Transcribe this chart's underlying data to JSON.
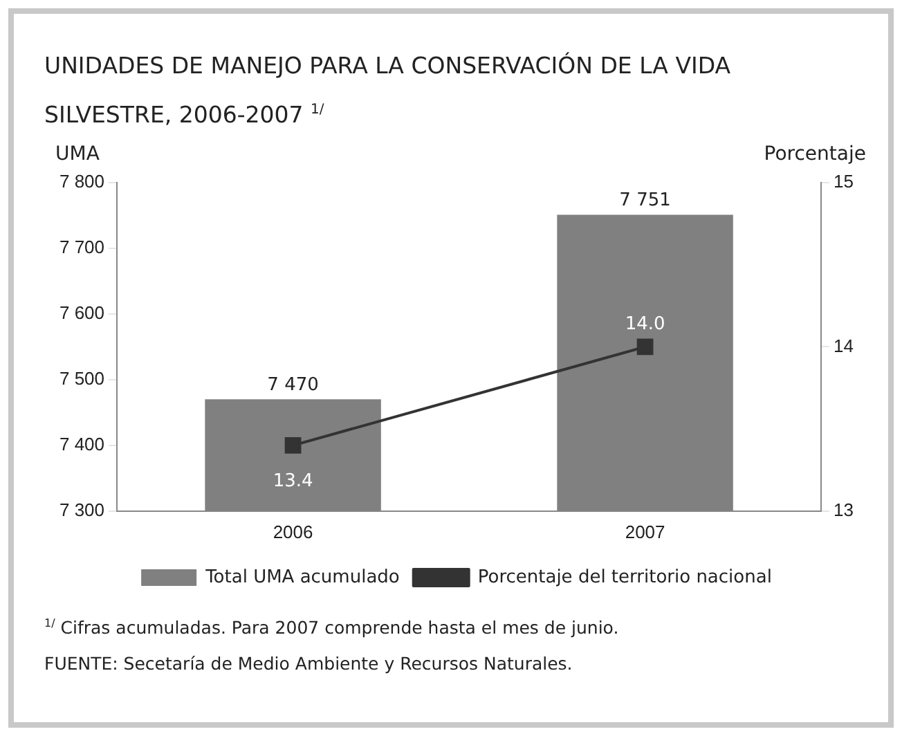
{
  "chart_data": {
    "type": "bar",
    "title": "UNIDADES DE MANEJO PARA LA CONSERVACIÓN DE LA VIDA SILVESTRE, 2006-2007 $^{1/}$",
    "ylabel": "UMA",
    "y2label": "Porcentaje",
    "categories": [
      "2006",
      "2007"
    ],
    "series": [
      {
        "name": "Total UMA acumulado",
        "color": "#808080",
        "values": [
          7470,
          7751
        ],
        "value_labels": [
          "7 470",
          "7 751"
        ]
      },
      {
        "name": "Porcentaje del territorio nacional",
        "type": "line",
        "axis": "y2",
        "color": "#333333",
        "marker": "square",
        "values": [
          13.4,
          14.0
        ],
        "value_labels": [
          "13.4",
          "14.0"
        ]
      }
    ],
    "ylim": [
      7300,
      7800
    ],
    "yticks": [
      {
        "value": 7300,
        "label": "7 300"
      },
      {
        "value": 7400,
        "label": "7 400"
      },
      {
        "value": 7500,
        "label": "7 500"
      },
      {
        "value": 7600,
        "label": "7 600"
      },
      {
        "value": 7700,
        "label": "7 700"
      },
      {
        "value": 7800,
        "label": "7 800"
      }
    ],
    "y2lim": [
      13,
      15
    ],
    "y2ticks": [
      13,
      14,
      15
    ],
    "grid": false,
    "legend": "bottom",
    "annotations": [
      "$^{1/}$ Cifras acumuladas. Para 2007 comprende hasta el mes de junio.",
      "FUENTE: Secetaría de Medio Ambiente y Recursos Naturales."
    ]
  }
}
